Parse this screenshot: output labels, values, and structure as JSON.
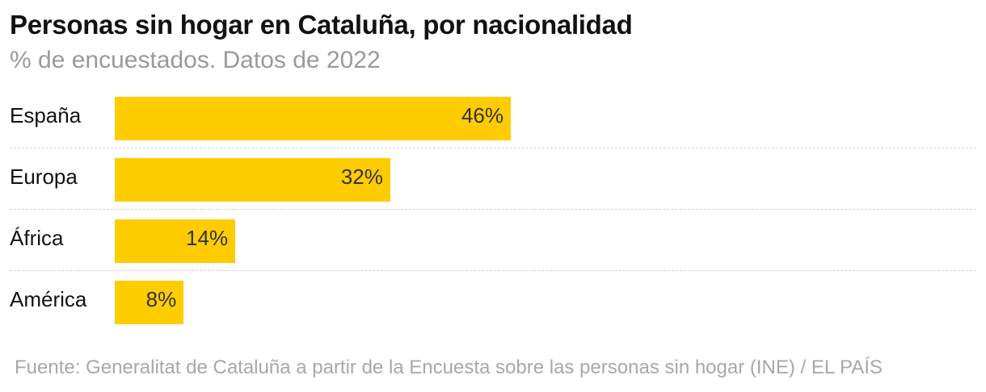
{
  "chart_data": {
    "type": "bar",
    "orientation": "horizontal",
    "title": "Personas sin hogar en Cataluña, por nacionalidad",
    "subtitle": "% de encuestados. Datos de 2022",
    "categories": [
      "España",
      "Europa",
      "África",
      "América"
    ],
    "values": [
      46,
      32,
      14,
      8
    ],
    "value_labels": [
      "46%",
      "32%",
      "14%",
      "8%"
    ],
    "unit": "%",
    "xlim": [
      0,
      100
    ],
    "bar_color": "#ffcc00",
    "grid": false,
    "source": "Fuente: Generalitat de Cataluña a partir de la Encuesta sobre las personas sin hogar (INE) / EL PAÍS"
  }
}
